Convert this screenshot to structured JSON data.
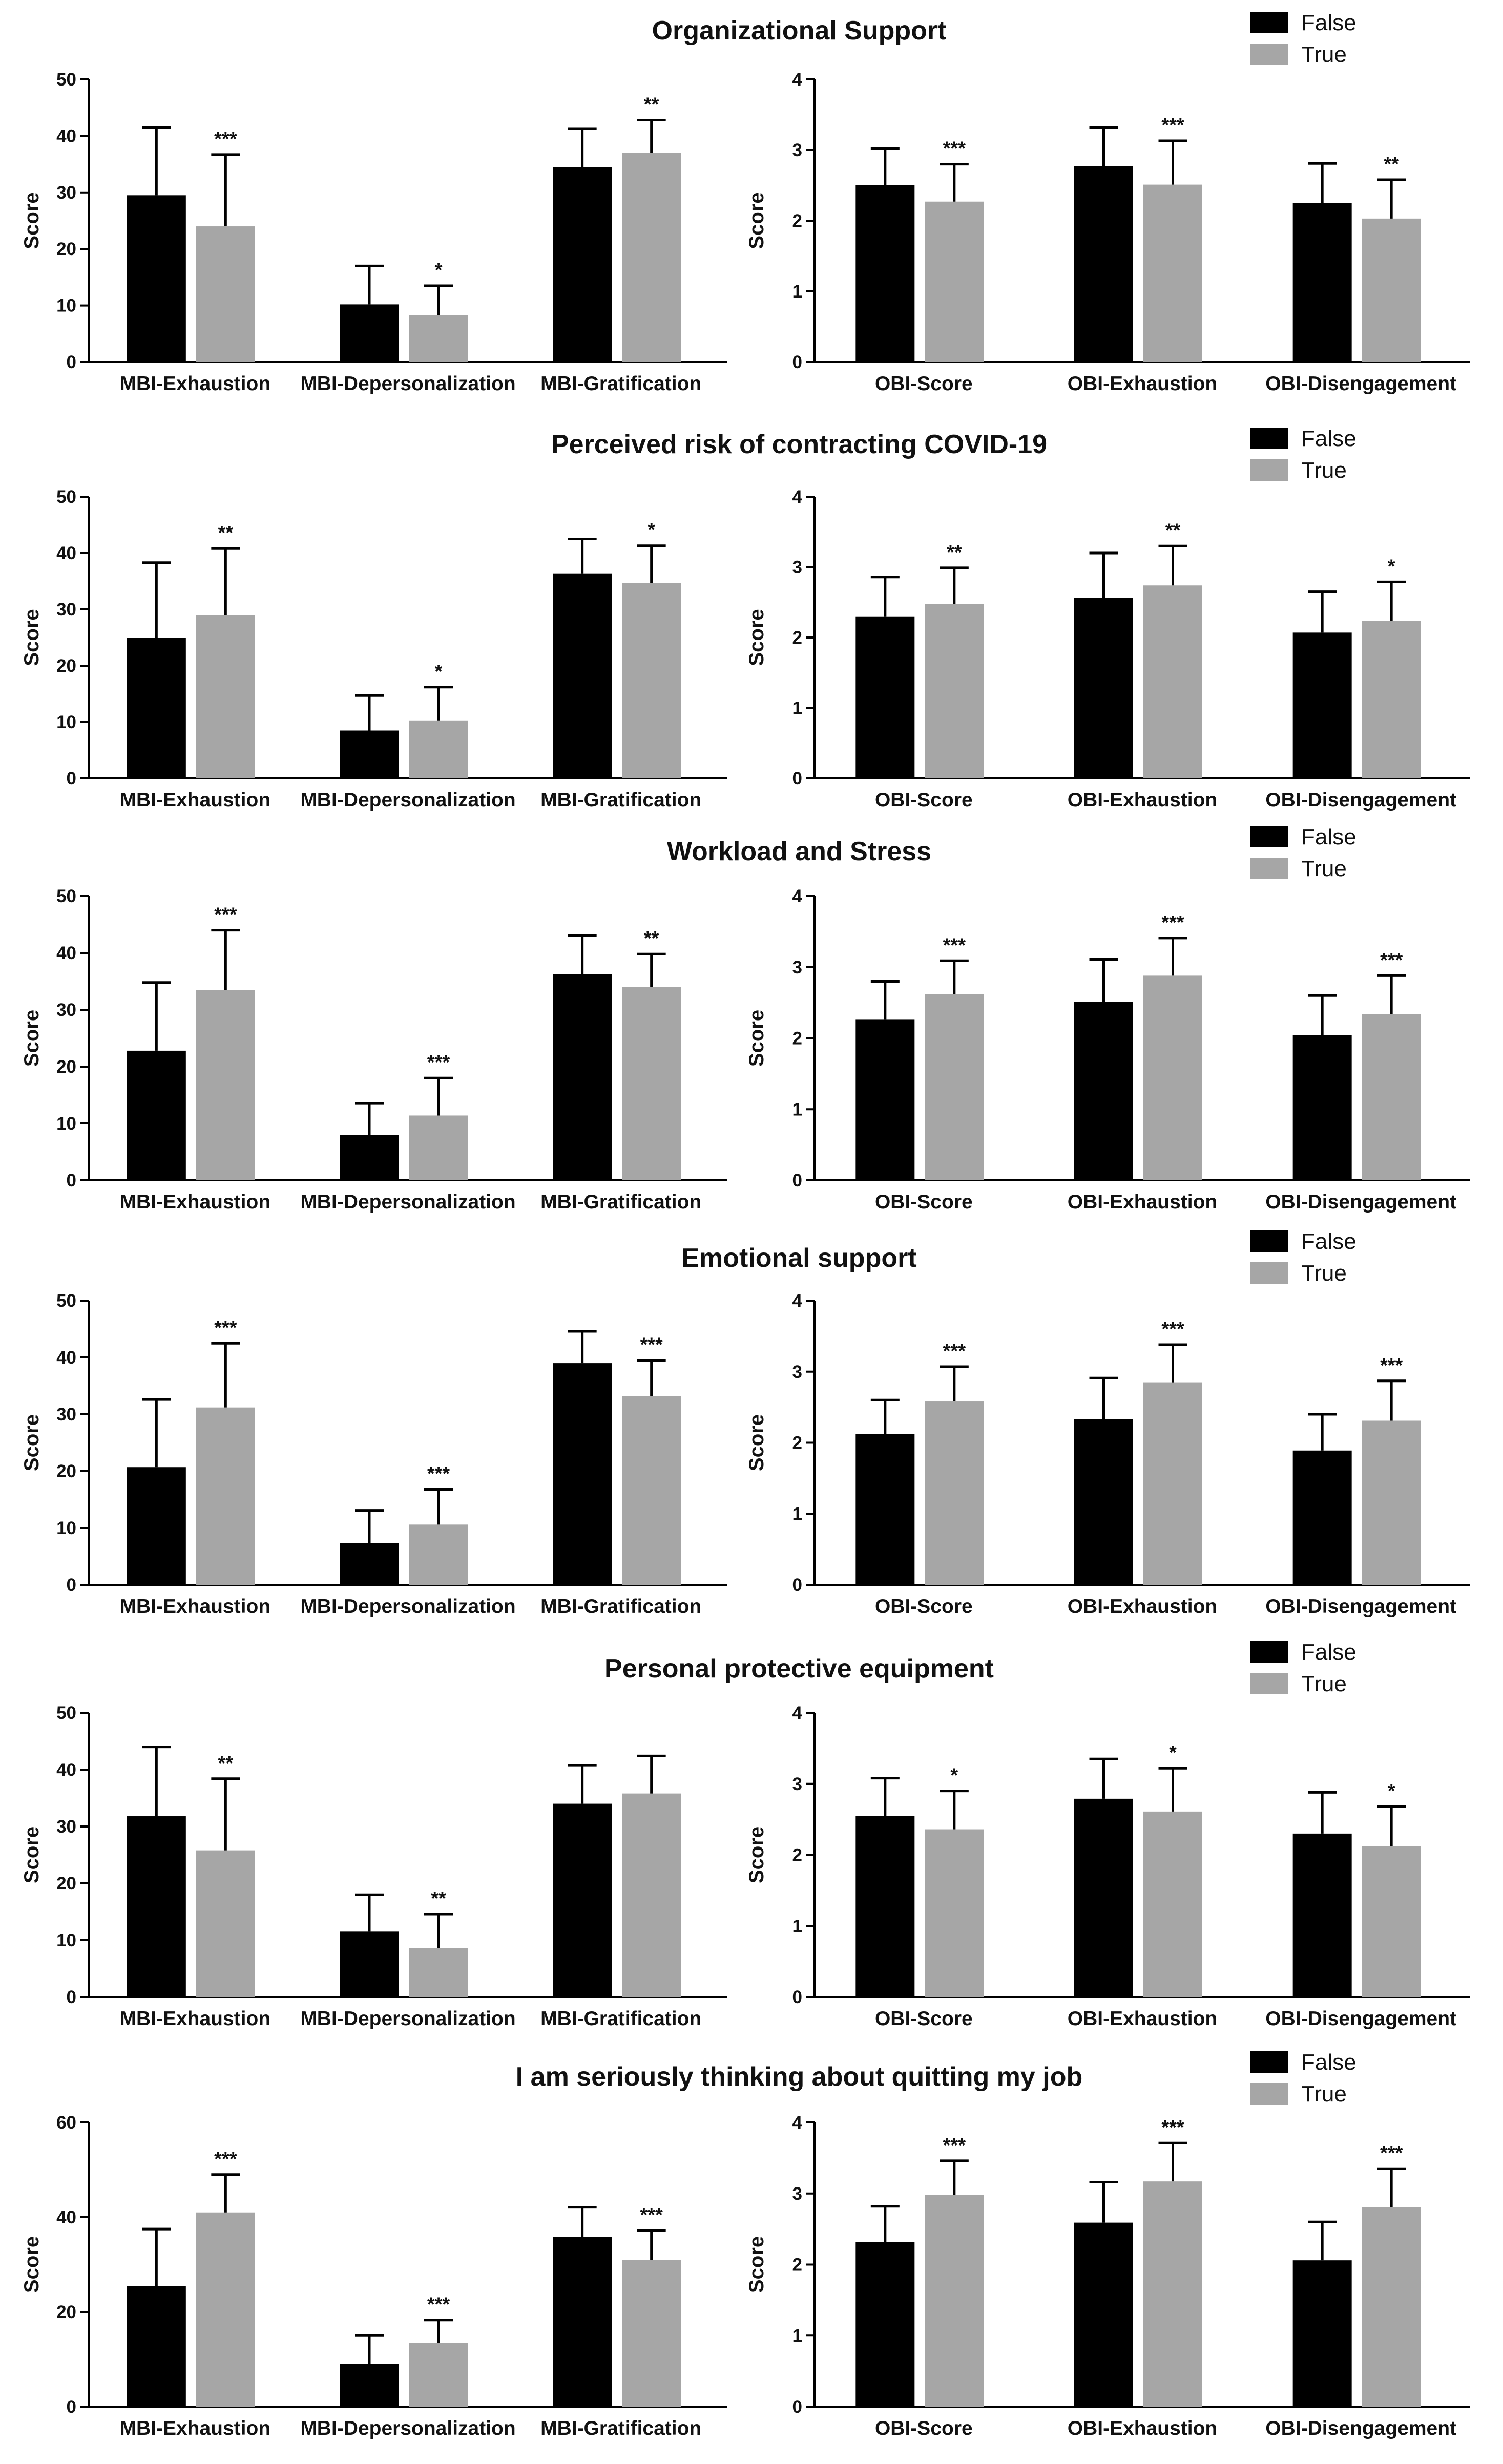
{
  "figure": {
    "colors": {
      "false": "#000000",
      "true": "#a6a6a6"
    },
    "legend": {
      "false_label": "False",
      "true_label": "True"
    },
    "y_axis_title": "Score"
  },
  "chart_data": [
    {
      "title": "Organizational Support",
      "legend": [
        "False",
        "True"
      ],
      "charts": [
        {
          "type": "bar",
          "ylabel": "Score",
          "ylim": [
            0,
            50
          ],
          "yticks": [
            0,
            10,
            20,
            30,
            40,
            50
          ],
          "categories": [
            "MBI-Exhaustion",
            "MBI-Depersonalization",
            "MBI-Gratification"
          ],
          "series": [
            {
              "name": "False",
              "values": [
                29.5,
                10.2,
                34.5
              ],
              "errors": [
                12,
                6.8,
                6.8
              ]
            },
            {
              "name": "True",
              "values": [
                24,
                8.3,
                37
              ],
              "errors": [
                12.7,
                5.2,
                5.8
              ]
            }
          ],
          "significance": [
            "***",
            "*",
            "**"
          ]
        },
        {
          "type": "bar",
          "ylabel": "Score",
          "ylim": [
            0,
            4
          ],
          "yticks": [
            0,
            1,
            2,
            3,
            4
          ],
          "categories": [
            "OBI-Score",
            "OBI-Exhaustion",
            "OBI-Disengagement"
          ],
          "series": [
            {
              "name": "False",
              "values": [
                2.5,
                2.77,
                2.25
              ],
              "errors": [
                0.52,
                0.55,
                0.56
              ]
            },
            {
              "name": "True",
              "values": [
                2.27,
                2.51,
                2.03
              ],
              "errors": [
                0.53,
                0.62,
                0.55
              ]
            }
          ],
          "significance": [
            "***",
            "***",
            "**"
          ]
        }
      ]
    },
    {
      "title": "Perceived risk of contracting COVID-19",
      "legend": [
        "False",
        "True"
      ],
      "charts": [
        {
          "type": "bar",
          "ylabel": "Score",
          "ylim": [
            0,
            50
          ],
          "yticks": [
            0,
            10,
            20,
            30,
            40,
            50
          ],
          "categories": [
            "MBI-Exhaustion",
            "MBI-Depersonalization",
            "MBI-Gratification"
          ],
          "series": [
            {
              "name": "False",
              "values": [
                25,
                8.5,
                36.3
              ],
              "errors": [
                13.3,
                6.2,
                6.2
              ]
            },
            {
              "name": "True",
              "values": [
                29,
                10.2,
                34.7
              ],
              "errors": [
                11.8,
                6,
                6.6
              ]
            }
          ],
          "significance": [
            "**",
            "*",
            "*"
          ]
        },
        {
          "type": "bar",
          "ylabel": "Score",
          "ylim": [
            0,
            4
          ],
          "yticks": [
            0,
            1,
            2,
            3,
            4
          ],
          "categories": [
            "OBI-Score",
            "OBI-Exhaustion",
            "OBI-Disengagement"
          ],
          "series": [
            {
              "name": "False",
              "values": [
                2.3,
                2.56,
                2.07
              ],
              "errors": [
                0.56,
                0.64,
                0.58
              ]
            },
            {
              "name": "True",
              "values": [
                2.48,
                2.74,
                2.24
              ],
              "errors": [
                0.51,
                0.56,
                0.55
              ]
            }
          ],
          "significance": [
            "**",
            "**",
            "*"
          ]
        }
      ]
    },
    {
      "title": "Workload and Stress",
      "legend": [
        "False",
        "True"
      ],
      "charts": [
        {
          "type": "bar",
          "ylabel": "Score",
          "ylim": [
            0,
            50
          ],
          "yticks": [
            0,
            10,
            20,
            30,
            40,
            50
          ],
          "categories": [
            "MBI-Exhaustion",
            "MBI-Depersonalization",
            "MBI-Gratification"
          ],
          "series": [
            {
              "name": "False",
              "values": [
                22.8,
                8,
                36.3
              ],
              "errors": [
                12,
                5.5,
                6.8
              ]
            },
            {
              "name": "True",
              "values": [
                33.5,
                11.4,
                34
              ],
              "errors": [
                10.5,
                6.6,
                5.8
              ]
            }
          ],
          "significance": [
            "***",
            "***",
            "**"
          ]
        },
        {
          "type": "bar",
          "ylabel": "Score",
          "ylim": [
            0,
            4
          ],
          "yticks": [
            0,
            1,
            2,
            3,
            4
          ],
          "categories": [
            "OBI-Score",
            "OBI-Exhaustion",
            "OBI-Disengagement"
          ],
          "series": [
            {
              "name": "False",
              "values": [
                2.26,
                2.51,
                2.04
              ],
              "errors": [
                0.54,
                0.6,
                0.56
              ]
            },
            {
              "name": "True",
              "values": [
                2.62,
                2.88,
                2.34
              ],
              "errors": [
                0.47,
                0.53,
                0.54
              ]
            }
          ],
          "significance": [
            "***",
            "***",
            "***"
          ]
        }
      ]
    },
    {
      "title": "Emotional support",
      "legend": [
        "False",
        "True"
      ],
      "charts": [
        {
          "type": "bar",
          "ylabel": "Score",
          "ylim": [
            0,
            50
          ],
          "yticks": [
            0,
            10,
            20,
            30,
            40,
            50
          ],
          "categories": [
            "MBI-Exhaustion",
            "MBI-Depersonalization",
            "MBI-Gratification"
          ],
          "series": [
            {
              "name": "False",
              "values": [
                20.7,
                7.3,
                39
              ],
              "errors": [
                11.9,
                5.8,
                5.6
              ]
            },
            {
              "name": "True",
              "values": [
                31.2,
                10.6,
                33.2
              ],
              "errors": [
                11.3,
                6.2,
                6.3
              ]
            }
          ],
          "significance": [
            "***",
            "***",
            "***"
          ]
        },
        {
          "type": "bar",
          "ylabel": "Score",
          "ylim": [
            0,
            4
          ],
          "yticks": [
            0,
            1,
            2,
            3,
            4
          ],
          "categories": [
            "OBI-Score",
            "OBI-Exhaustion",
            "OBI-Disengagement"
          ],
          "series": [
            {
              "name": "False",
              "values": [
                2.12,
                2.33,
                1.89
              ],
              "errors": [
                0.48,
                0.58,
                0.51
              ]
            },
            {
              "name": "True",
              "values": [
                2.58,
                2.85,
                2.31
              ],
              "errors": [
                0.49,
                0.53,
                0.56
              ]
            }
          ],
          "significance": [
            "***",
            "***",
            "***"
          ]
        }
      ]
    },
    {
      "title": "Personal protective equipment",
      "legend": [
        "False",
        "True"
      ],
      "charts": [
        {
          "type": "bar",
          "ylabel": "Score",
          "ylim": [
            0,
            50
          ],
          "yticks": [
            0,
            10,
            20,
            30,
            40,
            50
          ],
          "categories": [
            "MBI-Exhaustion",
            "MBI-Depersonalization",
            "MBI-Gratification"
          ],
          "series": [
            {
              "name": "False",
              "values": [
                31.8,
                11.5,
                34
              ],
              "errors": [
                12.2,
                6.5,
                6.8
              ]
            },
            {
              "name": "True",
              "values": [
                25.8,
                8.6,
                35.8
              ],
              "errors": [
                12.6,
                6,
                6.6
              ]
            }
          ],
          "significance": [
            "**",
            "**",
            ""
          ]
        },
        {
          "type": "bar",
          "ylabel": "Score",
          "ylim": [
            0,
            4
          ],
          "yticks": [
            0,
            1,
            2,
            3,
            4
          ],
          "categories": [
            "OBI-Score",
            "OBI-Exhaustion",
            "OBI-Disengagement"
          ],
          "series": [
            {
              "name": "False",
              "values": [
                2.55,
                2.79,
                2.3
              ],
              "errors": [
                0.53,
                0.56,
                0.58
              ]
            },
            {
              "name": "True",
              "values": [
                2.36,
                2.61,
                2.12
              ],
              "errors": [
                0.54,
                0.61,
                0.56
              ]
            }
          ],
          "significance": [
            "*",
            "*",
            "*"
          ]
        }
      ]
    },
    {
      "title": "I am seriously thinking about quitting my job",
      "legend": [
        "False",
        "True"
      ],
      "charts": [
        {
          "type": "bar",
          "ylabel": "Score",
          "ylim": [
            0,
            60
          ],
          "yticks": [
            0,
            20,
            40,
            60
          ],
          "categories": [
            "MBI-Exhaustion",
            "MBI-Depersonalization",
            "MBI-Gratification"
          ],
          "series": [
            {
              "name": "False",
              "values": [
                25.5,
                9,
                35.8
              ],
              "errors": [
                12,
                6,
                6.3
              ]
            },
            {
              "name": "True",
              "values": [
                41,
                13.5,
                31
              ],
              "errors": [
                8,
                4.8,
                6.2
              ]
            }
          ],
          "significance": [
            "***",
            "***",
            "***"
          ]
        },
        {
          "type": "bar",
          "ylabel": "Score",
          "ylim": [
            0,
            4
          ],
          "yticks": [
            0,
            1,
            2,
            3,
            4
          ],
          "categories": [
            "OBI-Score",
            "OBI-Exhaustion",
            "OBI-Disengagement"
          ],
          "series": [
            {
              "name": "False",
              "values": [
                2.32,
                2.59,
                2.06
              ],
              "errors": [
                0.5,
                0.57,
                0.54
              ]
            },
            {
              "name": "True",
              "values": [
                2.98,
                3.17,
                2.81
              ],
              "errors": [
                0.48,
                0.54,
                0.54
              ]
            }
          ],
          "significance": [
            "***",
            "***",
            "***"
          ]
        }
      ]
    }
  ]
}
